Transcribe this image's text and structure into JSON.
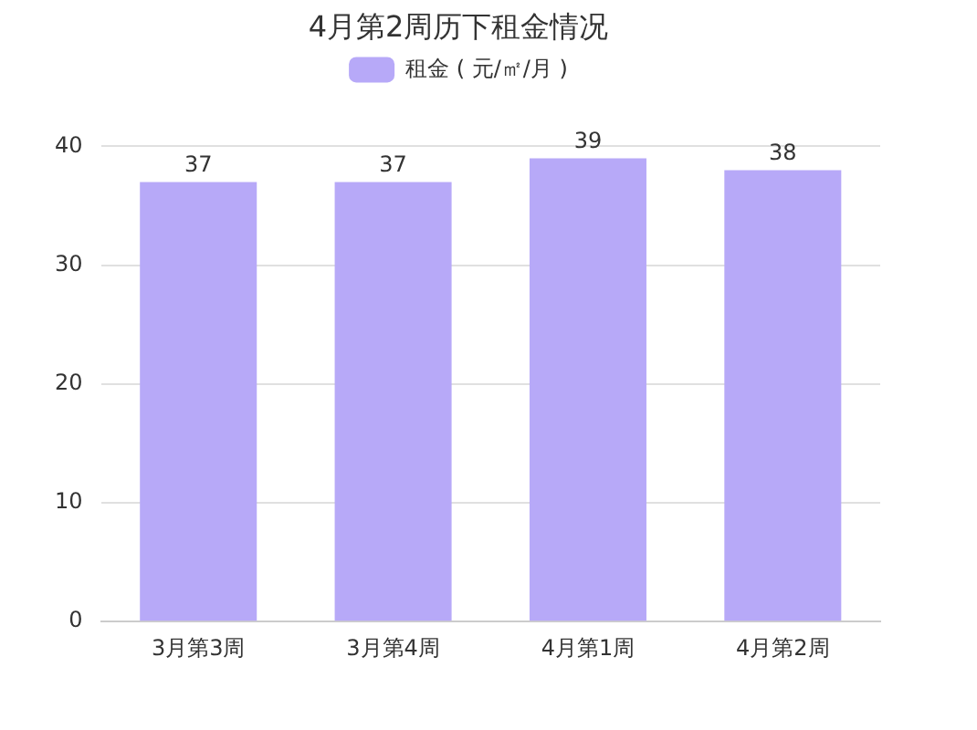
{
  "chart_data": {
    "type": "bar",
    "title": "4月第2周历下租金情况",
    "categories": [
      "3月第3周",
      "3月第4周",
      "4月第1周",
      "4月第2周"
    ],
    "series": [
      {
        "name": "租金 ( 元/㎡/月 )",
        "color": "#b7a9f8",
        "values": [
          37,
          37,
          39,
          38
        ]
      }
    ],
    "ylim": [
      0,
      40
    ],
    "yticks": [
      0,
      10,
      20,
      30,
      40
    ],
    "grid": "y",
    "legend": "top",
    "data_labels": true
  }
}
